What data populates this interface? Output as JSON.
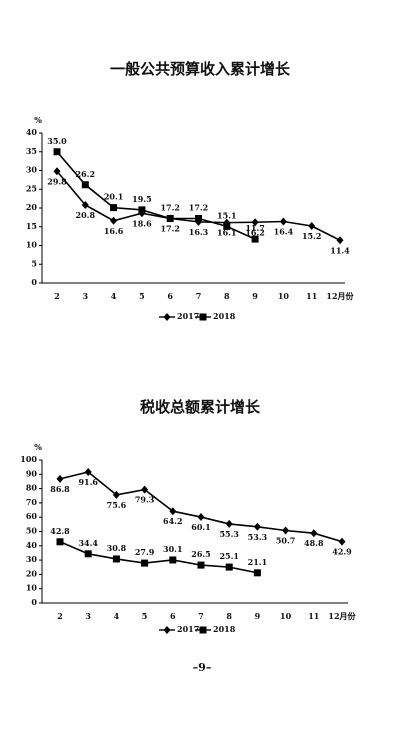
{
  "chart_data": [
    {
      "type": "line",
      "title": "一般公共预算收入累计增长",
      "y_label": "%",
      "categories": [
        "2",
        "3",
        "4",
        "5",
        "6",
        "7",
        "8",
        "9",
        "10",
        "11",
        "12月份"
      ],
      "ylim": [
        0,
        40
      ],
      "yticks": [
        0,
        5,
        10,
        15,
        20,
        25,
        30,
        35,
        40
      ],
      "series": [
        {
          "name": "2017",
          "color": "#000000",
          "marker": "diamond",
          "values": [
            29.8,
            20.8,
            16.6,
            18.6,
            17.2,
            16.3,
            16.1,
            16.2,
            16.4,
            15.2,
            11.4
          ],
          "value_labels": [
            "29.8",
            "20.8",
            "16.6",
            "18.6",
            "17.2",
            "16.3",
            "16.1",
            "16.2",
            "16.4",
            "15.2",
            "11.4"
          ]
        },
        {
          "name": "2018",
          "color": "#000000",
          "marker": "square",
          "values": [
            35,
            26.2,
            20.1,
            19.5,
            17.2,
            17.2,
            15.1,
            11.7,
            null,
            null,
            null
          ],
          "value_labels": [
            "35.0",
            "26.2",
            "20.1",
            "19.5",
            "17.2",
            "17.2",
            "15.1",
            "11.7",
            null,
            null,
            null
          ]
        }
      ]
    },
    {
      "type": "line",
      "title": "税收总额累计增长",
      "y_label": "%",
      "categories": [
        "2",
        "3",
        "4",
        "5",
        "6",
        "7",
        "8",
        "9",
        "10",
        "11",
        "12月份"
      ],
      "ylim": [
        0,
        100
      ],
      "yticks": [
        0,
        10,
        20,
        30,
        40,
        50,
        60,
        70,
        80,
        90,
        100
      ],
      "series": [
        {
          "name": "2017",
          "color": "#000000",
          "marker": "diamond",
          "values": [
            86.8,
            91.6,
            75.6,
            79.3,
            64.2,
            60.1,
            55.3,
            53.3,
            50.7,
            48.8,
            42.9
          ],
          "value_labels": [
            "86.8",
            "91.6",
            "75.6",
            "79.3",
            "64.2",
            "60.1",
            "55.3",
            "53.3",
            "50.7",
            "48.8",
            "42.9"
          ]
        },
        {
          "name": "2018",
          "color": "#000000",
          "marker": "square",
          "values": [
            42.8,
            34.4,
            30.8,
            27.9,
            30.1,
            26.5,
            25.1,
            21.1,
            null,
            null,
            null
          ],
          "value_labels": [
            "42.8",
            "34.4",
            "30.8",
            "27.9",
            "30.1",
            "26.5",
            "25.1",
            "21.1",
            null,
            null,
            null
          ]
        }
      ]
    }
  ],
  "page_number": "–9–"
}
